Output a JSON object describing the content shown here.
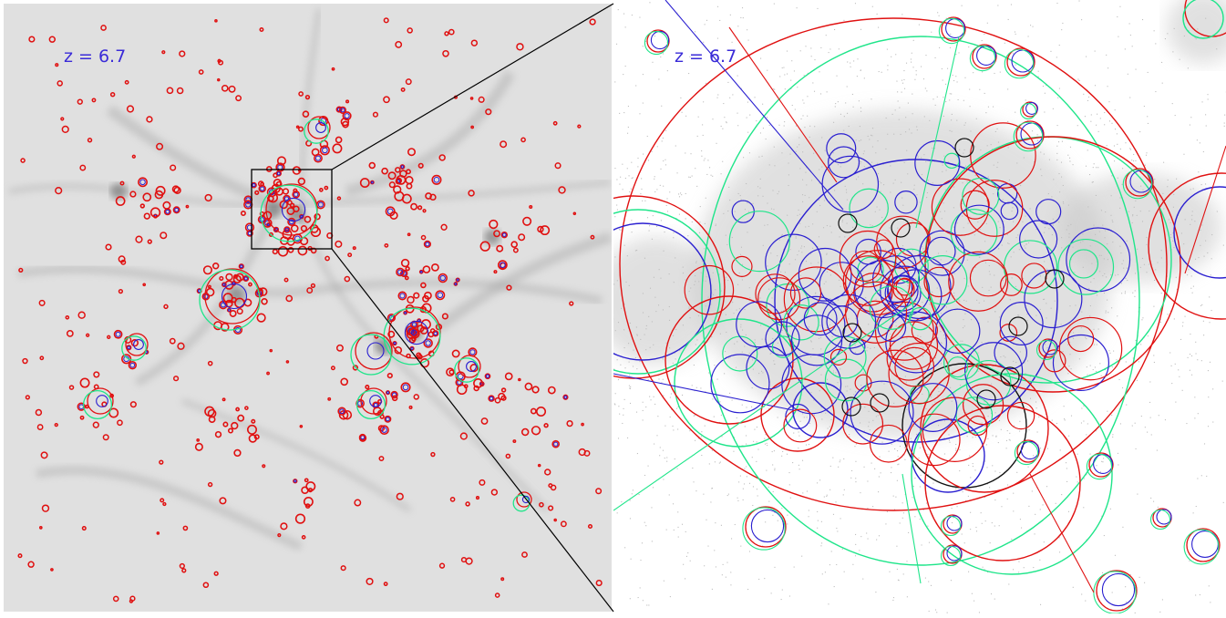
{
  "panels": {
    "left": {
      "label": "z = 6.7",
      "view": "full-box"
    },
    "right": {
      "label": "z = 6.7",
      "view": "zoom-inset"
    }
  },
  "colors": {
    "background_left": "#e2e2e2",
    "particles_right": "#bdbdbd",
    "halo_red": "#e01010",
    "halo_green": "#1fe58a",
    "halo_blue": "#2a1fd0",
    "halo_black": "#111111",
    "label": "#3a2bd8",
    "zoom_box": "#000000"
  },
  "legend": []
}
